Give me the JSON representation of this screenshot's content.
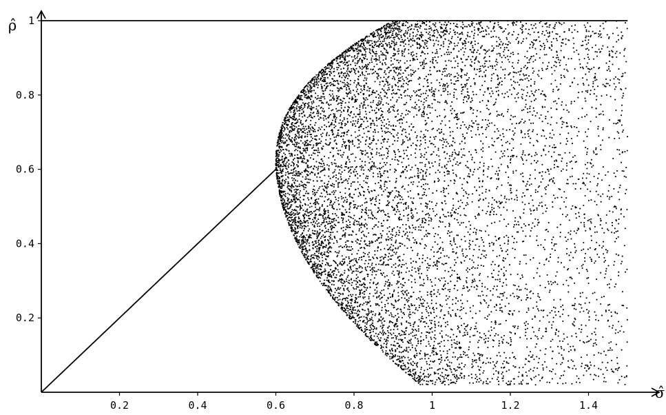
{
  "chart_data": {
    "type": "scatter",
    "xlabel": "σ̂",
    "ylabel": "ρ̂",
    "xlim": [
      0,
      1.5
    ],
    "ylim": [
      0,
      1
    ],
    "x_ticks": [
      "0.2",
      "0.4",
      "0.6",
      "0.8",
      "1",
      "1.2",
      "1.4"
    ],
    "y_ticks": [
      "0.2",
      "0.4",
      "0.6",
      "0.8",
      "1"
    ],
    "grid": false,
    "reference_lines": [
      {
        "x": [
          0,
          0.6
        ],
        "y": [
          0,
          0.6
        ]
      },
      {
        "x": [
          0,
          1.5
        ],
        "y": [
          1,
          1
        ]
      }
    ],
    "series": [
      {
        "point_count": 9000,
        "region": {
          "x_min_curve": "x >= sqrt(0.36*(1-y)^2 + ... ) approx: left boundary from (0.6,0.6) to (1.0,0.0) and to (0.9,1.0)",
          "x_max": 1.5,
          "y_range": [
            0.02,
            1.0
          ]
        },
        "color": "#000000"
      }
    ]
  }
}
